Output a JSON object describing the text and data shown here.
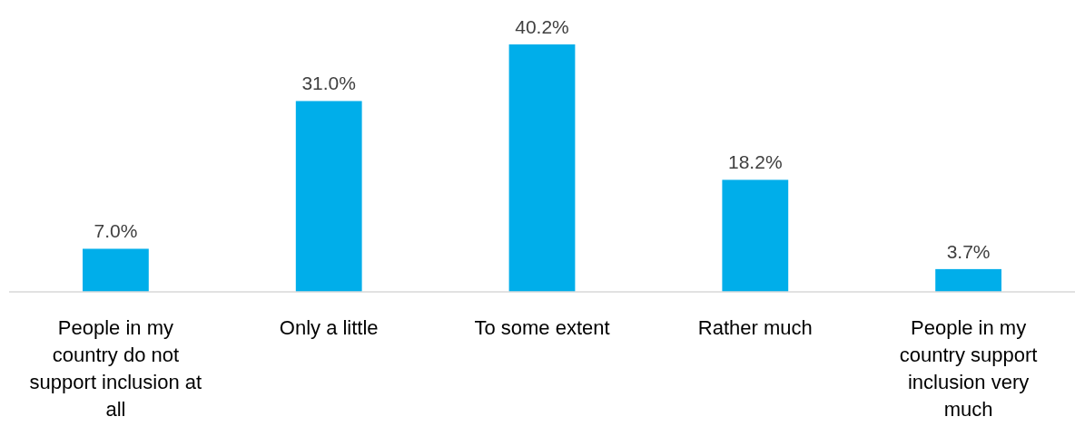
{
  "chart_data": {
    "type": "bar",
    "categories": [
      "People in my country do not support inclusion at all",
      "Only a little",
      "To some extent",
      "Rather much",
      "People in my country support inclusion very much"
    ],
    "values": [
      7.0,
      31.0,
      40.2,
      18.2,
      3.7
    ],
    "value_labels": [
      "7.0%",
      "31.0%",
      "40.2%",
      "18.2%",
      "3.7%"
    ],
    "color": "#00aeea"
  }
}
